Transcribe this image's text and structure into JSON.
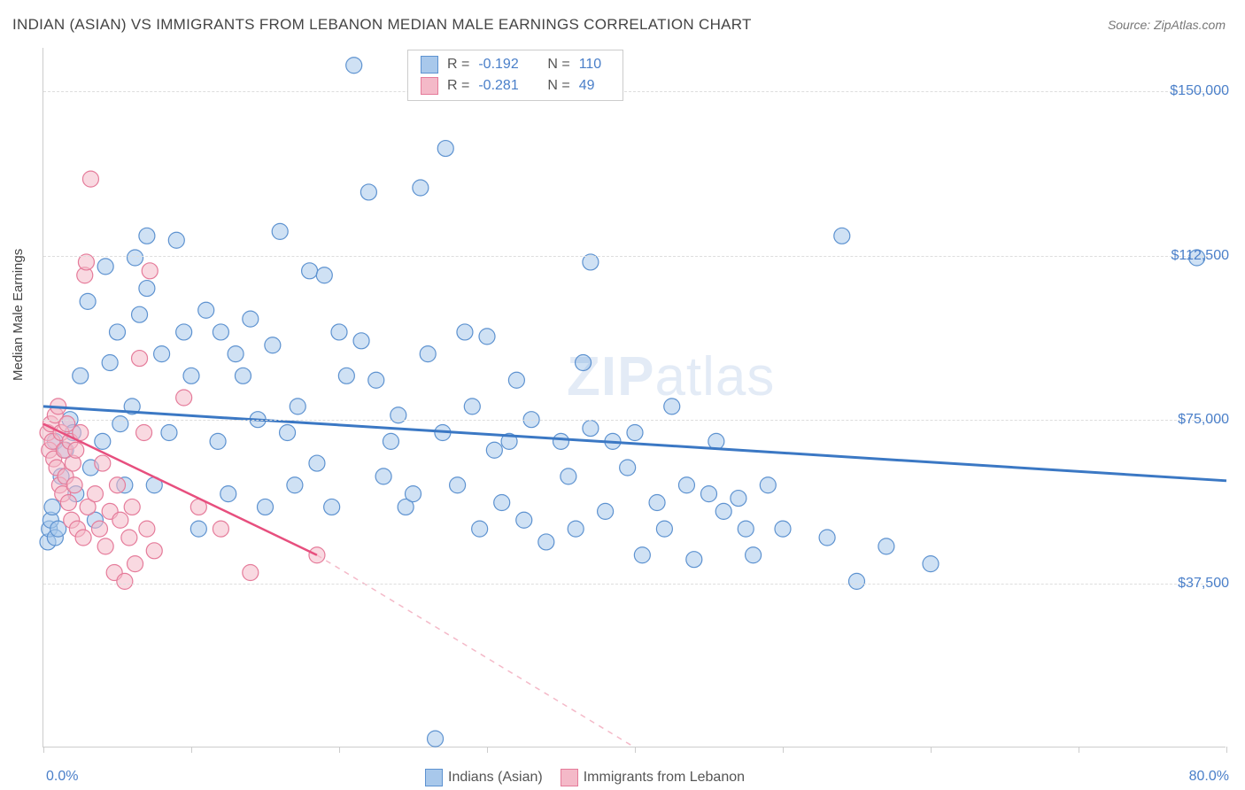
{
  "title": "INDIAN (ASIAN) VS IMMIGRANTS FROM LEBANON MEDIAN MALE EARNINGS CORRELATION CHART",
  "source": "Source: ZipAtlas.com",
  "ylabel": "Median Male Earnings",
  "watermark_a": "ZIP",
  "watermark_b": "atlas",
  "chart": {
    "type": "scatter",
    "xlim": [
      0,
      80
    ],
    "ylim": [
      0,
      160000
    ],
    "xtick_positions": [
      0,
      10,
      20,
      30,
      40,
      50,
      60,
      70,
      80
    ],
    "xtick_labels": {
      "0": "0.0%",
      "80": "80.0%"
    },
    "ytick_positions": [
      37500,
      75000,
      112500,
      150000
    ],
    "ytick_labels": [
      "$37,500",
      "$75,000",
      "$112,500",
      "$150,000"
    ],
    "grid_color": "#dddddd",
    "background_color": "#ffffff",
    "series": [
      {
        "name": "Indians (Asian)",
        "color_fill": "#a8c8eb",
        "color_stroke": "#5d92d0",
        "fill_opacity": 0.55,
        "marker_radius": 9,
        "R": "-0.192",
        "N": "110",
        "trend": {
          "x1": 0,
          "y1": 78000,
          "x2": 80,
          "y2": 61000,
          "color": "#3b78c4",
          "width": 3
        },
        "points": [
          [
            0.3,
            47000
          ],
          [
            0.4,
            50000
          ],
          [
            0.5,
            52000
          ],
          [
            0.6,
            55000
          ],
          [
            0.8,
            48000
          ],
          [
            0.8,
            70000
          ],
          [
            1.0,
            50000
          ],
          [
            1.2,
            62000
          ],
          [
            1.5,
            68000
          ],
          [
            1.8,
            75000
          ],
          [
            2.0,
            72000
          ],
          [
            2.2,
            58000
          ],
          [
            2.5,
            85000
          ],
          [
            3.0,
            102000
          ],
          [
            3.2,
            64000
          ],
          [
            3.5,
            52000
          ],
          [
            4.0,
            70000
          ],
          [
            4.2,
            110000
          ],
          [
            4.5,
            88000
          ],
          [
            5.0,
            95000
          ],
          [
            5.2,
            74000
          ],
          [
            5.5,
            60000
          ],
          [
            6.0,
            78000
          ],
          [
            6.2,
            112000
          ],
          [
            6.5,
            99000
          ],
          [
            7.0,
            105000
          ],
          [
            7.0,
            117000
          ],
          [
            7.5,
            60000
          ],
          [
            8.0,
            90000
          ],
          [
            8.5,
            72000
          ],
          [
            9.0,
            116000
          ],
          [
            9.5,
            95000
          ],
          [
            10.0,
            85000
          ],
          [
            10.5,
            50000
          ],
          [
            11.0,
            100000
          ],
          [
            11.8,
            70000
          ],
          [
            12.0,
            95000
          ],
          [
            12.5,
            58000
          ],
          [
            13.0,
            90000
          ],
          [
            13.5,
            85000
          ],
          [
            14.0,
            98000
          ],
          [
            14.5,
            75000
          ],
          [
            15.0,
            55000
          ],
          [
            15.5,
            92000
          ],
          [
            16.0,
            118000
          ],
          [
            16.5,
            72000
          ],
          [
            17.0,
            60000
          ],
          [
            17.2,
            78000
          ],
          [
            18.0,
            109000
          ],
          [
            18.5,
            65000
          ],
          [
            19.0,
            108000
          ],
          [
            19.5,
            55000
          ],
          [
            20.0,
            95000
          ],
          [
            20.5,
            85000
          ],
          [
            21.0,
            156000
          ],
          [
            21.5,
            93000
          ],
          [
            22.0,
            127000
          ],
          [
            22.5,
            84000
          ],
          [
            23.0,
            62000
          ],
          [
            23.5,
            70000
          ],
          [
            24.0,
            76000
          ],
          [
            24.5,
            55000
          ],
          [
            25.0,
            58000
          ],
          [
            25.5,
            128000
          ],
          [
            26.0,
            90000
          ],
          [
            26.5,
            2000
          ],
          [
            27.0,
            72000
          ],
          [
            27.2,
            137000
          ],
          [
            28.0,
            60000
          ],
          [
            28.5,
            95000
          ],
          [
            29.0,
            78000
          ],
          [
            29.5,
            50000
          ],
          [
            30.0,
            94000
          ],
          [
            30.5,
            68000
          ],
          [
            31.0,
            56000
          ],
          [
            31.5,
            70000
          ],
          [
            32.0,
            84000
          ],
          [
            32.5,
            52000
          ],
          [
            33.0,
            75000
          ],
          [
            34.0,
            47000
          ],
          [
            35.0,
            70000
          ],
          [
            35.5,
            62000
          ],
          [
            36.0,
            50000
          ],
          [
            36.5,
            88000
          ],
          [
            37.0,
            73000
          ],
          [
            37.0,
            111000
          ],
          [
            38.0,
            54000
          ],
          [
            38.5,
            70000
          ],
          [
            39.5,
            64000
          ],
          [
            40.0,
            72000
          ],
          [
            40.5,
            44000
          ],
          [
            41.5,
            56000
          ],
          [
            42.0,
            50000
          ],
          [
            42.5,
            78000
          ],
          [
            43.5,
            60000
          ],
          [
            44.0,
            43000
          ],
          [
            45.0,
            58000
          ],
          [
            45.5,
            70000
          ],
          [
            46.0,
            54000
          ],
          [
            47.0,
            57000
          ],
          [
            47.5,
            50000
          ],
          [
            48.0,
            44000
          ],
          [
            49.0,
            60000
          ],
          [
            50.0,
            50000
          ],
          [
            53.0,
            48000
          ],
          [
            54.0,
            117000
          ],
          [
            55.0,
            38000
          ],
          [
            57.0,
            46000
          ],
          [
            60.0,
            42000
          ],
          [
            78.0,
            112000
          ]
        ]
      },
      {
        "name": "Immigrants from Lebanon",
        "color_fill": "#f4b9c8",
        "color_stroke": "#e57b9a",
        "fill_opacity": 0.55,
        "marker_radius": 9,
        "R": "-0.281",
        "N": "49",
        "trend": {
          "x1": 0,
          "y1": 74000,
          "x2": 18.5,
          "y2": 44000,
          "color": "#e74f7e",
          "width": 2.5
        },
        "trend_dash": {
          "x1": 18.5,
          "y1": 44000,
          "x2": 40,
          "y2": 0,
          "color": "#f4b9c8",
          "width": 1.5
        },
        "points": [
          [
            0.3,
            72000
          ],
          [
            0.4,
            68000
          ],
          [
            0.5,
            74000
          ],
          [
            0.6,
            70000
          ],
          [
            0.7,
            66000
          ],
          [
            0.8,
            76000
          ],
          [
            0.9,
            64000
          ],
          [
            1.0,
            78000
          ],
          [
            1.1,
            60000
          ],
          [
            1.2,
            72000
          ],
          [
            1.3,
            58000
          ],
          [
            1.4,
            68000
          ],
          [
            1.5,
            62000
          ],
          [
            1.6,
            74000
          ],
          [
            1.7,
            56000
          ],
          [
            1.8,
            70000
          ],
          [
            1.9,
            52000
          ],
          [
            2.0,
            65000
          ],
          [
            2.1,
            60000
          ],
          [
            2.2,
            68000
          ],
          [
            2.3,
            50000
          ],
          [
            2.5,
            72000
          ],
          [
            2.7,
            48000
          ],
          [
            2.8,
            108000
          ],
          [
            2.9,
            111000
          ],
          [
            3.0,
            55000
          ],
          [
            3.2,
            130000
          ],
          [
            3.5,
            58000
          ],
          [
            3.8,
            50000
          ],
          [
            4.0,
            65000
          ],
          [
            4.2,
            46000
          ],
          [
            4.5,
            54000
          ],
          [
            4.8,
            40000
          ],
          [
            5.0,
            60000
          ],
          [
            5.2,
            52000
          ],
          [
            5.5,
            38000
          ],
          [
            5.8,
            48000
          ],
          [
            6.0,
            55000
          ],
          [
            6.2,
            42000
          ],
          [
            6.5,
            89000
          ],
          [
            6.8,
            72000
          ],
          [
            7.0,
            50000
          ],
          [
            7.2,
            109000
          ],
          [
            7.5,
            45000
          ],
          [
            9.5,
            80000
          ],
          [
            10.5,
            55000
          ],
          [
            12.0,
            50000
          ],
          [
            14.0,
            40000
          ],
          [
            18.5,
            44000
          ]
        ]
      }
    ]
  },
  "legend_bottom": [
    {
      "label": "Indians (Asian)",
      "fill": "#a8c8eb",
      "stroke": "#5d92d0"
    },
    {
      "label": "Immigrants from Lebanon",
      "fill": "#f4b9c8",
      "stroke": "#e57b9a"
    }
  ]
}
